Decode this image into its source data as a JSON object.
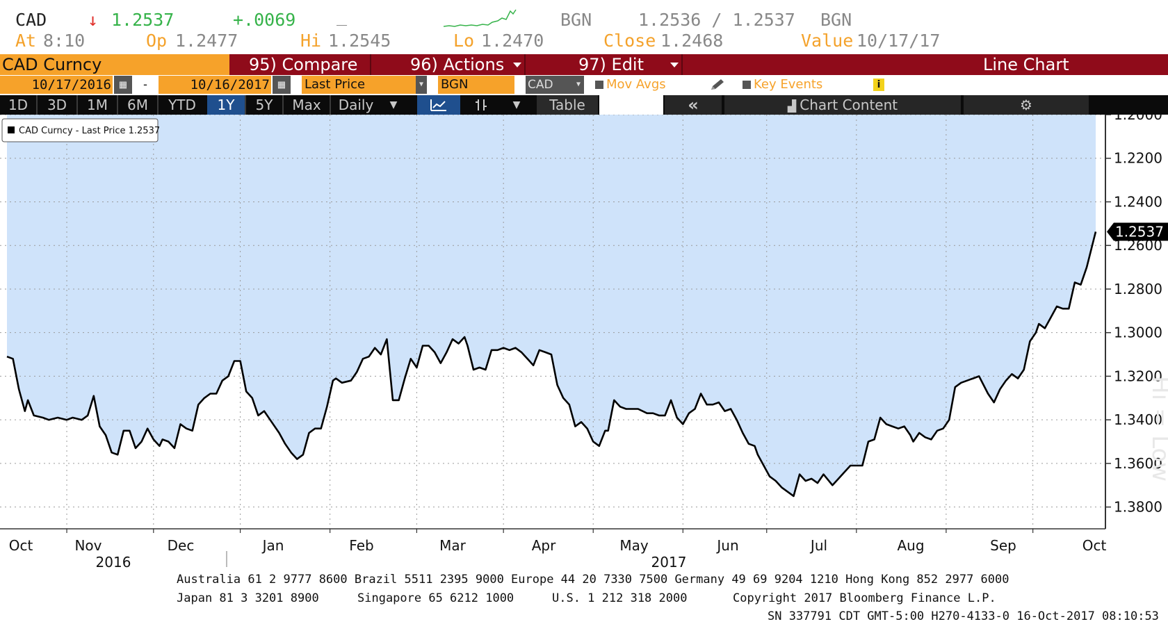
{
  "quote": {
    "ticker": "CAD",
    "direction_arrow": "↓",
    "last": "1.2537",
    "change": "+.0069",
    "dash": "_",
    "source1": "BGN",
    "bid_ask": "1.2536 / 1.2537",
    "source2": "BGN",
    "at_label": "At",
    "at_value": "8:10",
    "op_label": "Op",
    "op_value": "1.2477",
    "hi_label": "Hi",
    "hi_value": "1.2545",
    "lo_label": "Lo",
    "lo_value": "1.2470",
    "close_label": "Close",
    "close_value": "1.2468",
    "value_label": "Value",
    "value_value": "10/17/17"
  },
  "toolbar": {
    "security": "CAD Curncy",
    "compare": "95) Compare",
    "actions": "96) Actions",
    "edit": "97) Edit",
    "chart_type": "Line Chart"
  },
  "settings": {
    "start_date": "10/17/2016",
    "range_dash": "-",
    "end_date": "10/16/2017",
    "field": "Last Price",
    "source": "BGN",
    "currency": "CAD",
    "mov_avgs": "Mov Avgs",
    "key_events": "Key Events",
    "info_icon": "i"
  },
  "periods": {
    "d1": "1D",
    "d3": "3D",
    "m1": "1M",
    "m6": "6M",
    "ytd": "YTD",
    "y1": "1Y",
    "y5": "5Y",
    "max": "Max",
    "daily": "Daily",
    "table": "Table",
    "collapse": "«",
    "chart_content": "Chart Content"
  },
  "colors": {
    "area_fill": "#cfe3fa",
    "line": "#000000",
    "accent": "#f6a22a",
    "toolbar": "#8f0b1a",
    "active_tab": "#1f4f8e",
    "up": "#36b34a",
    "down": "#e0302b"
  },
  "footer": {
    "line1": "Australia 61 2 9777 8600 Brazil 5511 2395 9000 Europe 44 20 7330 7500 Germany 49 69 9204 1210 Hong Kong 852 2977 6000",
    "line2a": "Japan 81 3 3201 8900",
    "line2b": "Singapore 65 6212 1000",
    "line2c": "U.S. 1 212 318 2000",
    "line2d": "Copyright 2017 Bloomberg Finance L.P.",
    "line3": "SN 337791 CDT  GMT-5:00 H270-4133-0 16-Oct-2017 08:10:53"
  },
  "chart_data": {
    "type": "area",
    "legend": "CAD Curncy - Last Price 1.2537",
    "legend_placement": "top-left",
    "y_axis_inverted": true,
    "ylim": [
      1.2,
      1.39
    ],
    "y_ticks": [
      "1.2000",
      "1.2200",
      "1.2400",
      "1.2600",
      "1.2800",
      "1.3000",
      "1.3200",
      "1.3400",
      "1.3600",
      "1.3800"
    ],
    "y_tick_values": [
      1.2,
      1.22,
      1.24,
      1.26,
      1.28,
      1.3,
      1.32,
      1.34,
      1.36,
      1.38
    ],
    "last_value_label": "1.2537",
    "x_month_labels": [
      "Oct",
      "Nov",
      "Dec",
      "Jan",
      "Feb",
      "Mar",
      "Apr",
      "May",
      "Jun",
      "Jul",
      "Aug",
      "Sep",
      "Oct"
    ],
    "x_month_dates": [
      "2016-10-17",
      "2016-11-06",
      "2016-12-05",
      "2017-01-03",
      "2017-02-02",
      "2017-03-03",
      "2017-04-01",
      "2017-05-01",
      "2017-05-31",
      "2017-06-28",
      "2017-07-28",
      "2017-08-27",
      "2017-09-25",
      "2017-10-16"
    ],
    "year_labels": [
      "2016",
      "2017"
    ],
    "grid": true,
    "side_annotation": "Hi = Low",
    "series": [
      {
        "values": [
          [
            "2016-10-17",
            1.311
          ],
          [
            "2016-10-19",
            1.312
          ],
          [
            "2016-10-21",
            1.326
          ],
          [
            "2016-10-23",
            1.336
          ],
          [
            "2016-10-24",
            1.331
          ],
          [
            "2016-10-26",
            1.338
          ],
          [
            "2016-10-29",
            1.339
          ],
          [
            "2016-10-31",
            1.34
          ],
          [
            "2016-11-03",
            1.339
          ],
          [
            "2016-11-06",
            1.34
          ],
          [
            "2016-11-08",
            1.339
          ],
          [
            "2016-11-11",
            1.34
          ],
          [
            "2016-11-13",
            1.338
          ],
          [
            "2016-11-15",
            1.329
          ],
          [
            "2016-11-17",
            1.343
          ],
          [
            "2016-11-19",
            1.347
          ],
          [
            "2016-11-21",
            1.355
          ],
          [
            "2016-11-23",
            1.356
          ],
          [
            "2016-11-25",
            1.345
          ],
          [
            "2016-11-27",
            1.345
          ],
          [
            "2016-11-29",
            1.353
          ],
          [
            "2016-12-01",
            1.35
          ],
          [
            "2016-12-03",
            1.344
          ],
          [
            "2016-12-05",
            1.349
          ],
          [
            "2016-12-07",
            1.352
          ],
          [
            "2016-12-08",
            1.349
          ],
          [
            "2016-12-10",
            1.35
          ],
          [
            "2016-12-12",
            1.353
          ],
          [
            "2016-12-14",
            1.342
          ],
          [
            "2016-12-16",
            1.344
          ],
          [
            "2016-12-18",
            1.345
          ],
          [
            "2016-12-20",
            1.333
          ],
          [
            "2016-12-22",
            1.33
          ],
          [
            "2016-12-24",
            1.328
          ],
          [
            "2016-12-26",
            1.328
          ],
          [
            "2016-12-28",
            1.322
          ],
          [
            "2016-12-30",
            1.32
          ],
          [
            "2017-01-01",
            1.313
          ],
          [
            "2017-01-03",
            1.313
          ],
          [
            "2017-01-05",
            1.327
          ],
          [
            "2017-01-07",
            1.33
          ],
          [
            "2017-01-09",
            1.338
          ],
          [
            "2017-01-11",
            1.336
          ],
          [
            "2017-01-13",
            1.34
          ],
          [
            "2017-01-16",
            1.346
          ],
          [
            "2017-01-18",
            1.351
          ],
          [
            "2017-01-20",
            1.355
          ],
          [
            "2017-01-22",
            1.358
          ],
          [
            "2017-01-24",
            1.356
          ],
          [
            "2017-01-26",
            1.346
          ],
          [
            "2017-01-28",
            1.344
          ],
          [
            "2017-01-30",
            1.344
          ],
          [
            "2017-02-01",
            1.334
          ],
          [
            "2017-02-03",
            1.322
          ],
          [
            "2017-02-04",
            1.321
          ],
          [
            "2017-02-06",
            1.323
          ],
          [
            "2017-02-09",
            1.322
          ],
          [
            "2017-02-11",
            1.318
          ],
          [
            "2017-02-13",
            1.312
          ],
          [
            "2017-02-15",
            1.311
          ],
          [
            "2017-02-17",
            1.307
          ],
          [
            "2017-02-19",
            1.31
          ],
          [
            "2017-02-21",
            1.303
          ],
          [
            "2017-02-23",
            1.331
          ],
          [
            "2017-02-25",
            1.331
          ],
          [
            "2017-02-27",
            1.321
          ],
          [
            "2017-03-01",
            1.312
          ],
          [
            "2017-03-03",
            1.316
          ],
          [
            "2017-03-05",
            1.306
          ],
          [
            "2017-03-07",
            1.306
          ],
          [
            "2017-03-09",
            1.309
          ],
          [
            "2017-03-11",
            1.314
          ],
          [
            "2017-03-13",
            1.309
          ],
          [
            "2017-03-15",
            1.303
          ],
          [
            "2017-03-17",
            1.305
          ],
          [
            "2017-03-19",
            1.302
          ],
          [
            "2017-03-20",
            1.306
          ],
          [
            "2017-03-22",
            1.317
          ],
          [
            "2017-03-24",
            1.316
          ],
          [
            "2017-03-26",
            1.317
          ],
          [
            "2017-03-28",
            1.308
          ],
          [
            "2017-03-30",
            1.308
          ],
          [
            "2017-04-01",
            1.307
          ],
          [
            "2017-04-03",
            1.308
          ],
          [
            "2017-04-05",
            1.307
          ],
          [
            "2017-04-07",
            1.309
          ],
          [
            "2017-04-09",
            1.312
          ],
          [
            "2017-04-11",
            1.315
          ],
          [
            "2017-04-13",
            1.308
          ],
          [
            "2017-04-15",
            1.309
          ],
          [
            "2017-04-17",
            1.31
          ],
          [
            "2017-04-19",
            1.324
          ],
          [
            "2017-04-21",
            1.33
          ],
          [
            "2017-04-23",
            1.333
          ],
          [
            "2017-04-25",
            1.343
          ],
          [
            "2017-04-27",
            1.341
          ],
          [
            "2017-04-29",
            1.344
          ],
          [
            "2017-05-01",
            1.35
          ],
          [
            "2017-05-03",
            1.352
          ],
          [
            "2017-05-05",
            1.345
          ],
          [
            "2017-05-06",
            1.345
          ],
          [
            "2017-05-08",
            1.331
          ],
          [
            "2017-05-10",
            1.334
          ],
          [
            "2017-05-12",
            1.335
          ],
          [
            "2017-05-14",
            1.335
          ],
          [
            "2017-05-16",
            1.335
          ],
          [
            "2017-05-19",
            1.337
          ],
          [
            "2017-05-21",
            1.337
          ],
          [
            "2017-05-23",
            1.338
          ],
          [
            "2017-05-25",
            1.338
          ],
          [
            "2017-05-27",
            1.331
          ],
          [
            "2017-05-29",
            1.339
          ],
          [
            "2017-05-31",
            1.342
          ],
          [
            "2017-06-02",
            1.337
          ],
          [
            "2017-06-04",
            1.335
          ],
          [
            "2017-06-06",
            1.328
          ],
          [
            "2017-06-08",
            1.333
          ],
          [
            "2017-06-10",
            1.333
          ],
          [
            "2017-06-12",
            1.332
          ],
          [
            "2017-06-14",
            1.336
          ],
          [
            "2017-06-16",
            1.335
          ],
          [
            "2017-06-18",
            1.34
          ],
          [
            "2017-06-20",
            1.346
          ],
          [
            "2017-06-22",
            1.351
          ],
          [
            "2017-06-24",
            1.352
          ],
          [
            "2017-06-25",
            1.356
          ],
          [
            "2017-06-27",
            1.361
          ],
          [
            "2017-06-29",
            1.366
          ],
          [
            "2017-07-01",
            1.368
          ],
          [
            "2017-07-03",
            1.371
          ],
          [
            "2017-07-05",
            1.373
          ],
          [
            "2017-07-07",
            1.375
          ],
          [
            "2017-07-09",
            1.365
          ],
          [
            "2017-07-11",
            1.368
          ],
          [
            "2017-07-13",
            1.367
          ],
          [
            "2017-07-15",
            1.369
          ],
          [
            "2017-07-17",
            1.365
          ],
          [
            "2017-07-20",
            1.37
          ],
          [
            "2017-07-22",
            1.367
          ],
          [
            "2017-07-24",
            1.364
          ],
          [
            "2017-07-26",
            1.361
          ],
          [
            "2017-07-28",
            1.361
          ],
          [
            "2017-07-30",
            1.361
          ],
          [
            "2017-08-01",
            1.35
          ],
          [
            "2017-08-03",
            1.349
          ],
          [
            "2017-08-05",
            1.339
          ],
          [
            "2017-08-07",
            1.342
          ],
          [
            "2017-08-09",
            1.343
          ],
          [
            "2017-08-11",
            1.344
          ],
          [
            "2017-08-13",
            1.343
          ],
          [
            "2017-08-15",
            1.347
          ],
          [
            "2017-08-16",
            1.35
          ],
          [
            "2017-08-18",
            1.346
          ],
          [
            "2017-08-20",
            1.348
          ],
          [
            "2017-08-22",
            1.349
          ],
          [
            "2017-08-24",
            1.345
          ],
          [
            "2017-08-26",
            1.344
          ],
          [
            "2017-08-28",
            1.34
          ],
          [
            "2017-08-30",
            1.325
          ],
          [
            "2017-09-01",
            1.323
          ],
          [
            "2017-09-03",
            1.322
          ],
          [
            "2017-09-05",
            1.321
          ],
          [
            "2017-09-07",
            1.32
          ],
          [
            "2017-09-10",
            1.328
          ],
          [
            "2017-09-12",
            1.332
          ],
          [
            "2017-09-14",
            1.326
          ],
          [
            "2017-09-16",
            1.322
          ],
          [
            "2017-09-18",
            1.319
          ],
          [
            "2017-09-20",
            1.321
          ],
          [
            "2017-09-22",
            1.317
          ],
          [
            "2017-09-24",
            1.304
          ],
          [
            "2017-09-26",
            1.3
          ],
          [
            "2017-09-27",
            1.296
          ],
          [
            "2017-09-29",
            1.298
          ],
          [
            "2017-10-01",
            1.293
          ],
          [
            "2017-10-03",
            1.288
          ],
          [
            "2017-10-05",
            1.289
          ],
          [
            "2017-10-07",
            1.289
          ],
          [
            "2017-10-09",
            1.277
          ],
          [
            "2017-10-11",
            1.278
          ],
          [
            "2017-10-13",
            1.27
          ],
          [
            "2017-10-16",
            1.2537
          ]
        ]
      }
    ]
  }
}
